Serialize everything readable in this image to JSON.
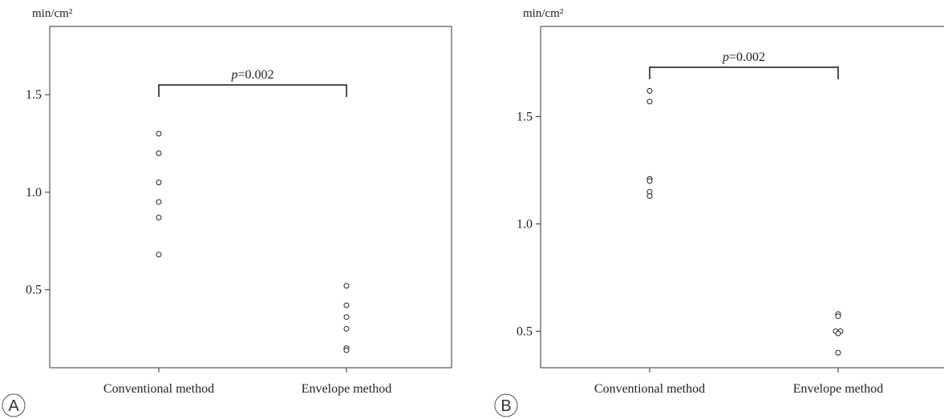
{
  "chart_data": [
    {
      "panel": "A",
      "type": "scatter",
      "ylabel": "min/cm²",
      "categories": [
        "Conventional method",
        "Envelope method"
      ],
      "series": [
        {
          "values": [
            [
              1.3,
              1.2,
              1.05,
              0.95,
              0.87,
              0.68
            ],
            [
              0.52,
              0.42,
              0.36,
              0.3,
              0.2,
              0.19
            ]
          ]
        }
      ],
      "ylim": [
        0.1,
        1.85
      ],
      "yticks": [
        0.5,
        1.0,
        1.5
      ],
      "ytick_labels": [
        "0.5",
        "1.0",
        "1.5"
      ],
      "annotation": {
        "p_label": "p",
        "p_value": "=0.002",
        "bracket_y": 1.55
      },
      "grid": false
    },
    {
      "panel": "B",
      "type": "scatter",
      "ylabel": "min/cm²",
      "categories": [
        "Conventional method",
        "Envelope method"
      ],
      "series": [
        {
          "values": [
            [
              1.62,
              1.57,
              1.21,
              1.2,
              1.15,
              1.13
            ],
            [
              0.58,
              0.57,
              0.5,
              0.5,
              0.49,
              0.4
            ]
          ]
        }
      ],
      "ylim": [
        0.33,
        1.92
      ],
      "yticks": [
        0.5,
        1.0,
        1.5
      ],
      "ytick_labels": [
        "0.5",
        "1.0",
        "1.5"
      ],
      "annotation": {
        "p_label": "p",
        "p_value": "=0.002",
        "bracket_y": 1.73
      },
      "grid": false
    }
  ]
}
